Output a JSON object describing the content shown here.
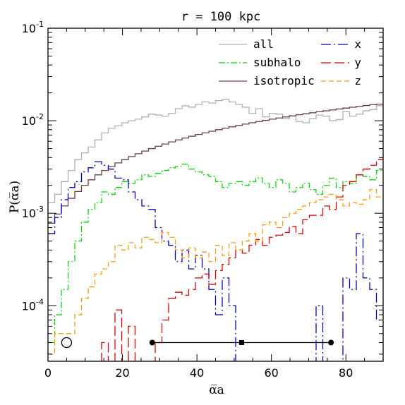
{
  "chart_data": {
    "type": "line",
    "title": "r = 100 kpc",
    "xlabel": "α̅a",
    "ylabel": "P(α̅a)",
    "xlim": [
      0,
      90
    ],
    "ylim_log10": [
      -4.6,
      -1
    ],
    "yscale": "log",
    "x_ticks": [
      "0",
      "20",
      "40",
      "60",
      "80"
    ],
    "y_ticks": [
      {
        "base": "10",
        "exp": "-1",
        "value": 0.1
      },
      {
        "base": "10",
        "exp": "-2",
        "value": 0.01
      },
      {
        "base": "10",
        "exp": "-3",
        "value": 0.001
      },
      {
        "base": "10",
        "exp": "-4",
        "value": 0.0001
      }
    ],
    "bin_width": 1.8,
    "legend": {
      "left": [
        {
          "label": "all",
          "color": "#b0b0b0",
          "dash": "solid"
        },
        {
          "label": "subhalo",
          "color": "#00dd00",
          "dash": "dashdot"
        },
        {
          "label": "isotropic",
          "color": "#6b4040",
          "dash": "solid"
        }
      ],
      "right": [
        {
          "label": "x",
          "color": "#0000cc",
          "dash": "longdashdot"
        },
        {
          "label": "y",
          "color": "#dd0000",
          "dash": "longdash"
        },
        {
          "label": "z",
          "color": "#ff9900",
          "dash": "dash"
        }
      ]
    },
    "series": [
      {
        "name": "all",
        "color": "#b0b0b0",
        "dash": "solid",
        "values": [
          0.0013,
          0.0016,
          0.0022,
          0.0029,
          0.0038,
          0.0045,
          0.0052,
          0.0062,
          0.0074,
          0.0083,
          0.0088,
          0.0095,
          0.01,
          0.0104,
          0.011,
          0.0118,
          0.0115,
          0.0112,
          0.012,
          0.0135,
          0.0145,
          0.014,
          0.015,
          0.016,
          0.0155,
          0.0165,
          0.017,
          0.016,
          0.015,
          0.014,
          0.012,
          0.0135,
          0.011,
          0.012,
          0.0118,
          0.0105,
          0.0112,
          0.0098,
          0.0095,
          0.0105,
          0.0115,
          0.0112,
          0.01,
          0.0103,
          0.0125,
          0.0112,
          0.0118,
          0.0128,
          0.0132,
          0.0145
        ]
      },
      {
        "name": "isotropic",
        "color": "#6b4040",
        "dash": "solid",
        "values": [
          0.00078,
          0.00098,
          0.0012,
          0.00145,
          0.00172,
          0.002,
          0.0023,
          0.0026,
          0.0029,
          0.0032,
          0.0035,
          0.0038,
          0.0041,
          0.0044,
          0.0047,
          0.005,
          0.0053,
          0.0056,
          0.0059,
          0.0062,
          0.0065,
          0.0068,
          0.0071,
          0.0074,
          0.0077,
          0.008,
          0.0083,
          0.0086,
          0.0089,
          0.0092,
          0.0095,
          0.0098,
          0.0101,
          0.0104,
          0.0107,
          0.011,
          0.0113,
          0.0116,
          0.0119,
          0.0122,
          0.0125,
          0.0128,
          0.0131,
          0.0134,
          0.0137,
          0.014,
          0.0143,
          0.0146,
          0.0149,
          0.0151
        ]
      },
      {
        "name": "subhalo",
        "color": "#00dd00",
        "dash": "dashdot",
        "values": [
          4e-05,
          8e-05,
          0.00015,
          0.0003,
          0.0005,
          0.0008,
          0.0011,
          0.0013,
          0.0017,
          0.0016,
          0.0019,
          0.0022,
          0.0021,
          0.0023,
          0.0026,
          0.0025,
          0.0027,
          0.0029,
          0.0031,
          0.0032,
          0.0034,
          0.003,
          0.0028,
          0.0026,
          0.0025,
          0.0022,
          0.0019,
          0.0021,
          0.0022,
          0.002,
          0.0022,
          0.0024,
          0.0021,
          0.0019,
          0.0023,
          0.0021,
          0.0017,
          0.0019,
          0.0021,
          0.0018,
          0.0016,
          0.002,
          0.0024,
          0.0019,
          0.0022,
          0.0021,
          0.0026,
          0.0025,
          0.0023,
          0.0029
        ]
      },
      {
        "name": "x",
        "color": "#0000cc",
        "dash": "longdashdot",
        "values": [
          0.0006,
          0.0009,
          0.0014,
          0.0019,
          0.0022,
          0.0028,
          0.0031,
          0.0036,
          0.0033,
          0.003,
          0.0024,
          0.0023,
          0.0017,
          0.0014,
          0.0012,
          0.0011,
          0.0007,
          0.0005,
          0.00045,
          0.0003,
          0.0004,
          0.00025,
          0.00035,
          0.00025,
          0.00015,
          8e-05,
          0.0002,
          0.0001,
          2e-05,
          2e-05,
          2e-05,
          2e-05,
          2e-05,
          2e-05,
          2e-05,
          2e-05,
          2e-05,
          2e-05,
          2e-05,
          2e-05,
          0.0001,
          2e-05,
          2e-05,
          2e-05,
          0.0002,
          0.00015,
          0.0006,
          0.0002,
          0.00015,
          7e-05
        ]
      },
      {
        "name": "y",
        "color": "#dd0000",
        "dash": "longdash",
        "values": [
          2e-05,
          2e-05,
          2e-05,
          2e-05,
          2e-05,
          2e-05,
          2e-05,
          2e-05,
          4e-05,
          2e-05,
          9e-05,
          2e-05,
          6e-05,
          2e-05,
          2e-05,
          2e-05,
          4e-05,
          7e-05,
          0.00012,
          0.00014,
          0.00013,
          0.00015,
          0.0002,
          0.00022,
          0.00017,
          0.00024,
          0.00028,
          0.00033,
          0.0004,
          0.00037,
          0.00045,
          0.00052,
          0.00045,
          0.00055,
          0.00058,
          0.00062,
          0.00072,
          0.0006,
          0.00085,
          0.00095,
          0.00095,
          0.0012,
          0.0011,
          0.0015,
          0.002,
          0.0022,
          0.0026,
          0.003,
          0.0033,
          0.0038
        ]
      },
      {
        "name": "z",
        "color": "#ff9900",
        "dash": "dash",
        "values": [
          3e-05,
          5e-05,
          5e-05,
          5e-05,
          8e-05,
          0.00012,
          0.00016,
          0.00022,
          0.00025,
          0.0003,
          0.00045,
          0.0004,
          0.00048,
          0.00042,
          0.00055,
          0.00052,
          0.00048,
          0.00062,
          0.00055,
          0.0004,
          0.00033,
          0.00042,
          0.00033,
          0.00038,
          0.0003,
          0.00045,
          0.00035,
          0.00048,
          0.0004,
          0.0005,
          0.0006,
          0.0005,
          0.00075,
          0.0008,
          0.0007,
          0.0009,
          0.001,
          0.0011,
          0.0012,
          0.0013,
          0.0014,
          0.0015,
          0.0016,
          0.0014,
          0.0012,
          0.0013,
          0.00125,
          0.0014,
          0.0018,
          0.0015
        ]
      }
    ],
    "markers": {
      "open_circle": {
        "x": 5,
        "y": 4e-05
      },
      "errorbar": {
        "x_low": 28,
        "x_mid": 52,
        "x_high": 76,
        "y": 4e-05
      }
    }
  }
}
